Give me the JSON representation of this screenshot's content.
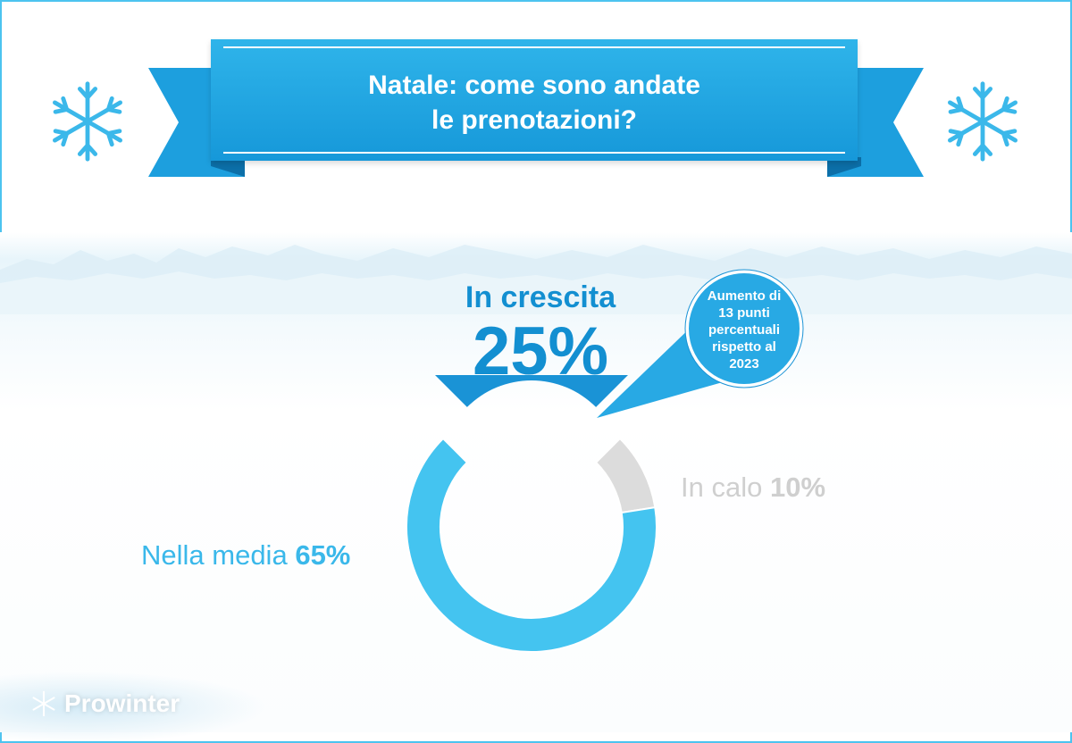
{
  "header": {
    "title_line1": "Natale: come sono andate",
    "title_line2": "le prenotazioni?"
  },
  "colors": {
    "accent": "#138fd1",
    "banner": "#1fa5e0",
    "media": "#44c4f0",
    "calo": "#dcdcdc"
  },
  "chart_data": {
    "type": "pie",
    "variant": "donut",
    "title": "Natale: come sono andate le prenotazioni?",
    "slices": [
      {
        "label": "In crescita",
        "value": 25,
        "unit": "%",
        "color": "#1a93d6",
        "highlighted": true
      },
      {
        "label": "In calo",
        "value": 10,
        "unit": "%",
        "color": "#dcdcdc"
      },
      {
        "label": "Nella media",
        "value": 65,
        "unit": "%",
        "color": "#44c4f0"
      }
    ],
    "labels": {
      "crescita_cat": "In crescita",
      "crescita_pct": "25%",
      "calo_cat": "In calo",
      "calo_pct": "10%",
      "media_cat": "Nella media",
      "media_pct": "65%"
    },
    "annotation": {
      "line1": "Aumento di",
      "line2": "13 punti",
      "line3": "percentuali",
      "line4": "rispetto al",
      "line5": "2023"
    }
  },
  "brand": {
    "name": "Prowinter",
    "icon": "snowflake-icon"
  }
}
